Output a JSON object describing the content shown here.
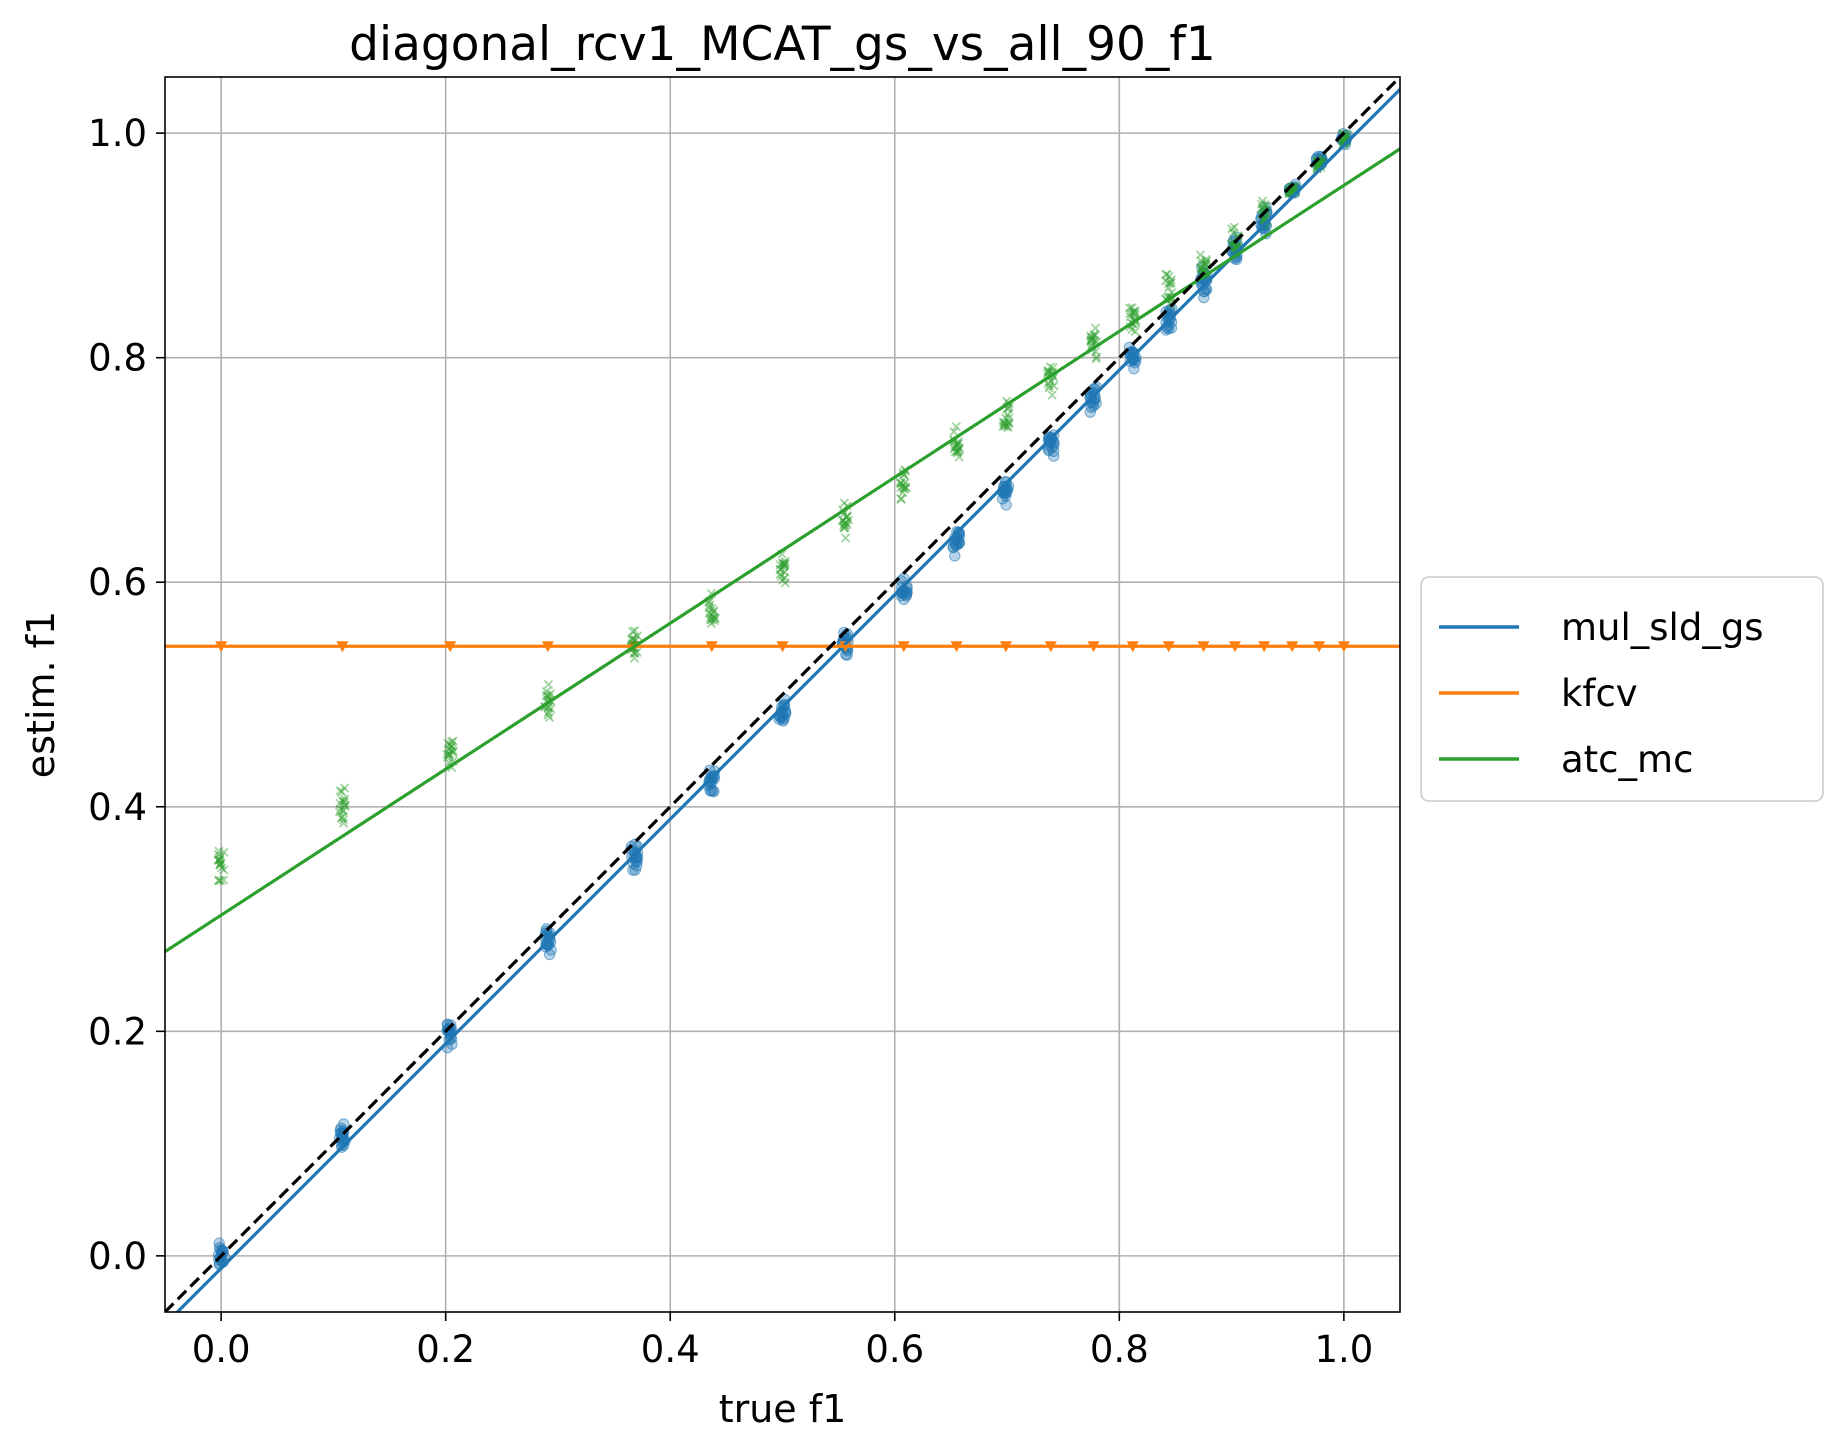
{
  "chart_data": {
    "type": "scatter",
    "title": "diagonal_rcv1_MCAT_gs_vs_all_90_f1",
    "xlabel": "true f1",
    "ylabel": "estim. f1",
    "xlim": [
      -0.05,
      1.05
    ],
    "ylim": [
      -0.05,
      1.05
    ],
    "xticks": [
      0.0,
      0.2,
      0.4,
      0.6,
      0.8,
      1.0
    ],
    "yticks": [
      0.0,
      0.2,
      0.4,
      0.6,
      0.8,
      1.0
    ],
    "xtick_labels": [
      "0.0",
      "0.2",
      "0.4",
      "0.6",
      "0.8",
      "1.0"
    ],
    "ytick_labels": [
      "0.0",
      "0.2",
      "0.4",
      "0.6",
      "0.8",
      "1.0"
    ],
    "grid": true,
    "legend_position": "right, outside plot",
    "x": [
      0.0,
      0.108,
      0.204,
      0.291,
      0.368,
      0.437,
      0.5,
      0.556,
      0.608,
      0.655,
      0.699,
      0.739,
      0.777,
      0.812,
      0.844,
      0.875,
      0.903,
      0.929,
      0.954,
      0.978,
      1.0
    ],
    "diagonal": {
      "style": "dashed",
      "color": "#000000",
      "x": [
        -0.05,
        1.05
      ],
      "y": [
        -0.05,
        1.05
      ]
    },
    "series": [
      {
        "name": "mul_sld_gs",
        "color": "#1f77b4",
        "marker": "circle",
        "y": [
          0.0,
          0.105,
          0.198,
          0.28,
          0.355,
          0.425,
          0.485,
          0.545,
          0.59,
          0.637,
          0.683,
          0.725,
          0.763,
          0.8,
          0.835,
          0.868,
          0.897,
          0.924,
          0.95,
          0.975,
          0.995
        ],
        "fit": {
          "slope": 1.0,
          "intercept": -0.011
        }
      },
      {
        "name": "kfcv",
        "color": "#ff7f0e",
        "marker": "triangle-down",
        "y": [
          0.543,
          0.543,
          0.543,
          0.543,
          0.543,
          0.543,
          0.543,
          0.543,
          0.543,
          0.543,
          0.543,
          0.543,
          0.543,
          0.543,
          0.543,
          0.543,
          0.543,
          0.543,
          0.543,
          0.543,
          0.543
        ],
        "fit": {
          "slope": 0.0,
          "intercept": 0.543
        }
      },
      {
        "name": "atc_mc",
        "color": "#2ca02c",
        "marker": "x",
        "y": [
          0.35,
          0.4,
          0.45,
          0.495,
          0.54,
          0.575,
          0.615,
          0.655,
          0.685,
          0.72,
          0.748,
          0.78,
          0.81,
          0.835,
          0.858,
          0.88,
          0.902,
          0.925,
          0.95,
          0.972,
          0.995
        ],
        "fit": {
          "slope": 0.65,
          "intercept": 0.3035
        }
      }
    ]
  }
}
